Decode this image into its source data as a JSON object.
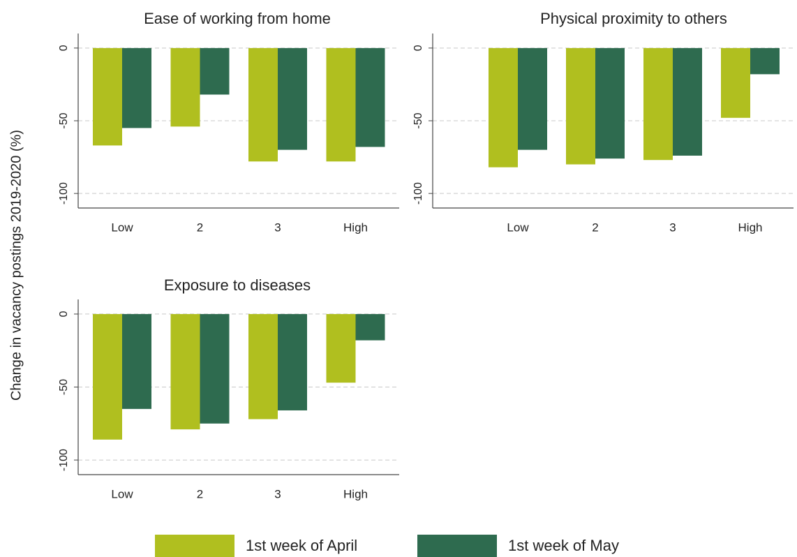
{
  "ylabel": "Change in vacancy postings 2019-2020 (%)",
  "chart_data": [
    {
      "type": "bar",
      "title": "Ease of working from home",
      "categories": [
        "Low",
        "2",
        "3",
        "High"
      ],
      "series": [
        {
          "name": "1st week of April",
          "color": "#b0bf1f",
          "values": [
            -67,
            -54,
            -78,
            -78
          ]
        },
        {
          "name": "1st week of May",
          "color": "#2e6b4f",
          "values": [
            -55,
            -32,
            -70,
            -68
          ]
        }
      ],
      "ylim": [
        -110,
        10
      ],
      "yticks": [
        0,
        -50,
        -100
      ],
      "grid": true
    },
    {
      "type": "bar",
      "title": "Physical proximity to others",
      "categories": [
        "Low",
        "2",
        "3",
        "High"
      ],
      "series": [
        {
          "name": "1st week of April",
          "color": "#b0bf1f",
          "values": [
            -82,
            -80,
            -77,
            -48
          ]
        },
        {
          "name": "1st week of May",
          "color": "#2e6b4f",
          "values": [
            -70,
            -76,
            -74,
            -18
          ]
        }
      ],
      "ylim": [
        -110,
        10
      ],
      "yticks": [
        0,
        -50,
        -100
      ],
      "grid": true
    },
    {
      "type": "bar",
      "title": "Exposure to diseases",
      "categories": [
        "Low",
        "2",
        "3",
        "High"
      ],
      "series": [
        {
          "name": "1st week of April",
          "color": "#b0bf1f",
          "values": [
            -86,
            -79,
            -72,
            -47
          ]
        },
        {
          "name": "1st week of May",
          "color": "#2e6b4f",
          "values": [
            -65,
            -75,
            -66,
            -18
          ]
        }
      ],
      "ylim": [
        -110,
        10
      ],
      "yticks": [
        0,
        -50,
        -100
      ],
      "grid": true
    }
  ]
}
